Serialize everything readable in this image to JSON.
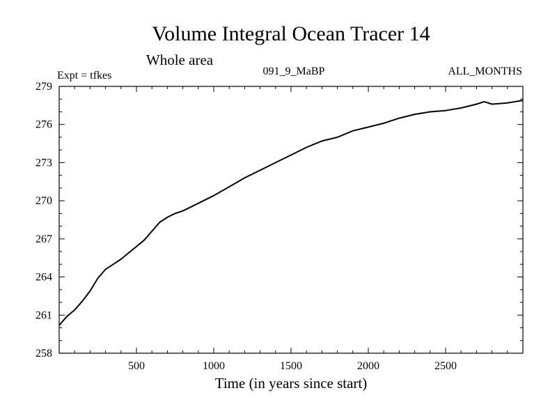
{
  "header": {
    "title": "Volume Integral Ocean Tracer 14",
    "subtitle": "Whole area",
    "expt_label": "Expt = tfkes",
    "run_id": "091_9_MaBP",
    "months_label": "ALL_MONTHS"
  },
  "chart_data": {
    "type": "line",
    "title": "Volume Integral Ocean Tracer 14",
    "subtitle": "Whole area",
    "xlabel": "Time (in years since start)",
    "ylabel": "",
    "xlim": [
      0,
      3000
    ],
    "ylim": [
      258,
      279
    ],
    "x_ticks": [
      500,
      1000,
      1500,
      2000,
      2500
    ],
    "y_ticks": [
      258,
      261,
      264,
      267,
      270,
      273,
      276,
      279
    ],
    "grid": false,
    "series": [
      {
        "x": [
          0,
          50,
          100,
          150,
          200,
          250,
          300,
          350,
          400,
          450,
          500,
          550,
          600,
          650,
          700,
          750,
          800,
          850,
          900,
          950,
          1000,
          1100,
          1200,
          1300,
          1400,
          1500,
          1600,
          1700,
          1800,
          1900,
          2000,
          2100,
          2200,
          2300,
          2400,
          2500,
          2600,
          2700,
          2750,
          2800,
          2900,
          3000
        ],
        "values": [
          260.2,
          260.9,
          261.4,
          262.1,
          262.9,
          263.9,
          264.6,
          265.0,
          265.4,
          265.9,
          266.4,
          266.9,
          267.6,
          268.3,
          268.7,
          269.0,
          269.2,
          269.5,
          269.8,
          270.1,
          270.4,
          271.1,
          271.8,
          272.4,
          273.0,
          273.6,
          274.2,
          274.7,
          275.0,
          275.5,
          275.8,
          276.1,
          276.5,
          276.8,
          277.0,
          277.1,
          277.3,
          277.6,
          277.8,
          277.6,
          277.7,
          277.9
        ]
      }
    ]
  }
}
